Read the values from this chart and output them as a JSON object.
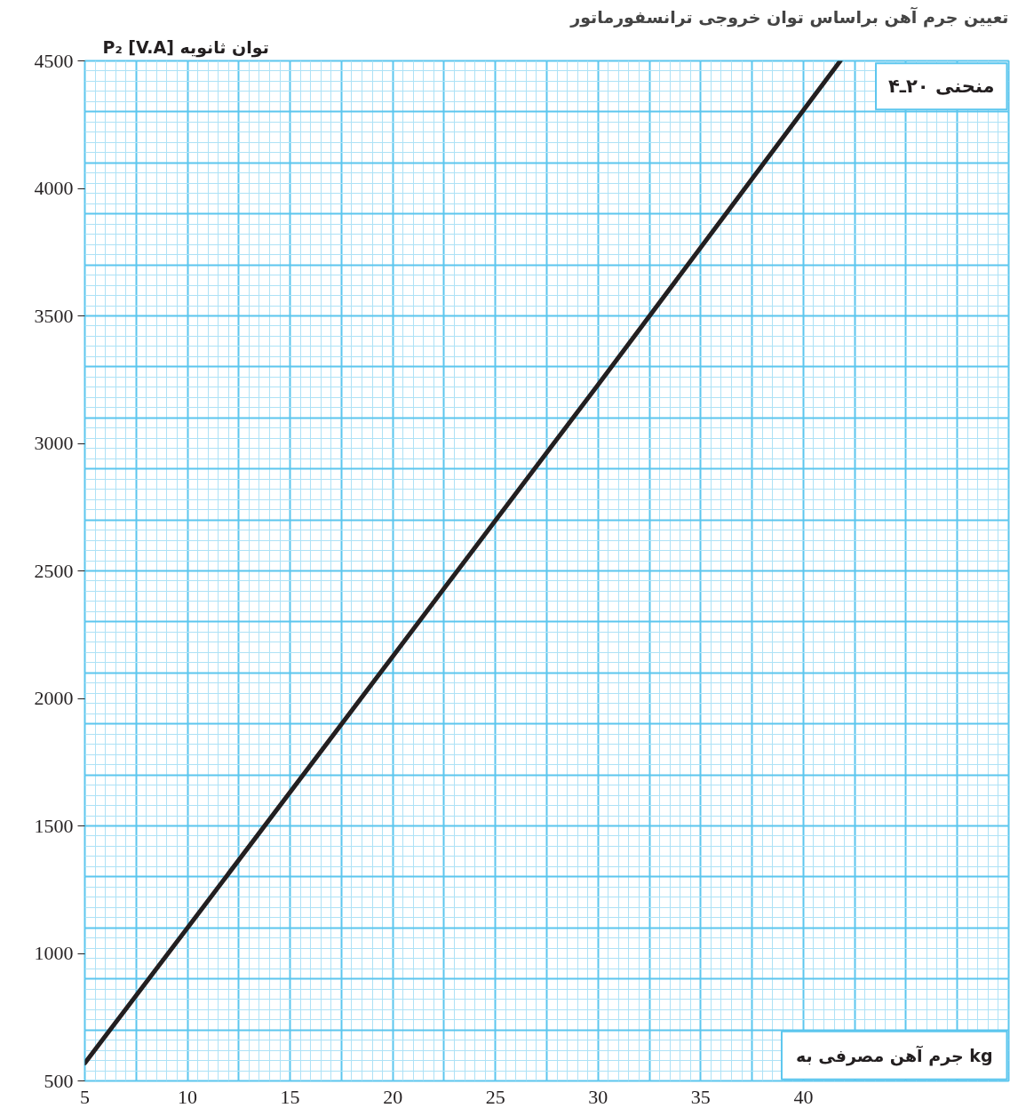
{
  "chart_data": {
    "type": "line",
    "title": "تعیین جرم آهن براساس توان خروجی ترانسفورماتور",
    "xlabel": "جرم آهن مصرفی به kg",
    "ylabel": "P₂ [V.A] توان ثانویه",
    "annotations": [
      "منحنی ۲۰ـ۴"
    ],
    "x": [
      5,
      10,
      20,
      30,
      41.8
    ],
    "series": [
      {
        "color": "#231f20",
        "values": [
          570,
          1100,
          2165,
          3230,
          4500
        ]
      }
    ],
    "xlim": [
      5,
      50
    ],
    "ylim": [
      500,
      4500
    ],
    "xticks": [
      5,
      10,
      15,
      20,
      25,
      30,
      35,
      40
    ],
    "yticks": [
      500,
      1000,
      1500,
      2000,
      2500,
      3000,
      3500,
      4000,
      4500
    ],
    "grid": true,
    "marker": "none",
    "line_style": "solid"
  }
}
